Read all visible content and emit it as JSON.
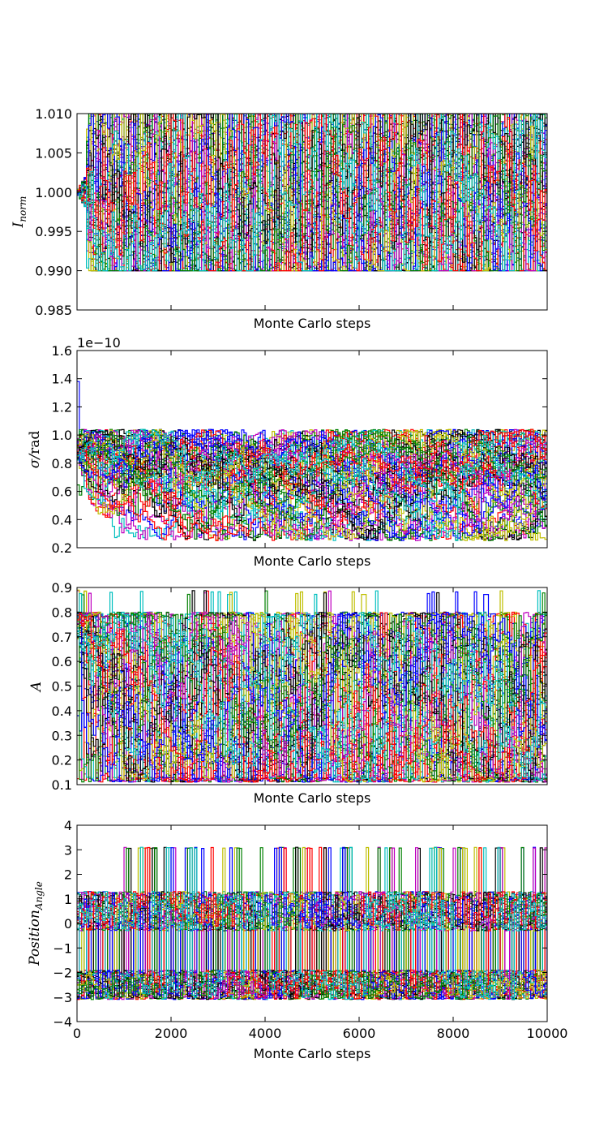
{
  "chart_data": [
    {
      "type": "line",
      "panel": "I_norm",
      "title": "",
      "xlabel": "Monte Carlo steps",
      "ylabel": {
        "base": "I",
        "sub": "norm"
      },
      "xlim": [
        0,
        10000
      ],
      "ylim": [
        0.985,
        1.01
      ],
      "yticks": [
        "0.985",
        "0.990",
        "0.995",
        "1.000",
        "1.005",
        "1.010"
      ],
      "show_xtick_labels": false,
      "offset_text": "",
      "walkers": {
        "count": 60,
        "colors": [
          "#0000ff",
          "#008000",
          "#ff0000",
          "#00bfbf",
          "#bf00bf",
          "#bfbf00",
          "#000000"
        ]
      },
      "series_envelope": {
        "start": 1.0,
        "lower": 0.99,
        "upper": 1.01
      }
    },
    {
      "type": "line",
      "panel": "sigma",
      "title": "",
      "xlabel": "Monte Carlo steps",
      "ylabel": {
        "base": "σ/",
        "upright": "rad"
      },
      "xlim": [
        0,
        10000
      ],
      "ylim": [
        0.2,
        1.6
      ],
      "yticks": [
        "0.2",
        "0.4",
        "0.6",
        "0.8",
        "1.0",
        "1.2",
        "1.4",
        "1.6"
      ],
      "show_xtick_labels": false,
      "offset_text": "1e−10",
      "walkers": {
        "count": 60,
        "colors": [
          "#0000ff",
          "#008000",
          "#ff0000",
          "#00bfbf",
          "#bf00bf",
          "#bfbf00",
          "#000000"
        ]
      },
      "series_envelope": {
        "start": 1.38,
        "lower": 0.25,
        "upper": 1.04,
        "typical_low": 0.55
      }
    },
    {
      "type": "line",
      "panel": "A",
      "title": "",
      "xlabel": "Monte Carlo steps",
      "ylabel": {
        "base": "A"
      },
      "xlim": [
        0,
        10000
      ],
      "ylim": [
        0.1,
        0.9
      ],
      "yticks": [
        "0.1",
        "0.2",
        "0.3",
        "0.4",
        "0.5",
        "0.6",
        "0.7",
        "0.8",
        "0.9"
      ],
      "show_xtick_labels": false,
      "offset_text": "",
      "walkers": {
        "count": 60,
        "colors": [
          "#0000ff",
          "#008000",
          "#ff0000",
          "#00bfbf",
          "#bf00bf",
          "#bfbf00",
          "#000000"
        ]
      },
      "series_envelope": {
        "start": 0.8,
        "lower": 0.11,
        "upper": 0.8,
        "spike_max": 0.89
      }
    },
    {
      "type": "line",
      "panel": "PA",
      "title": "",
      "xlabel": "Monte Carlo steps",
      "ylabel": {
        "base": "Position",
        "sub": "Angle"
      },
      "xlim": [
        0,
        10000
      ],
      "ylim": [
        -4,
        4
      ],
      "xticks": [
        "0",
        "2000",
        "4000",
        "6000",
        "8000",
        "10000"
      ],
      "yticks": [
        "−4",
        "−3",
        "−2",
        "−1",
        "0",
        "1",
        "2",
        "3",
        "4"
      ],
      "show_xtick_labels": true,
      "offset_text": "",
      "walkers": {
        "count": 60,
        "colors": [
          "#0000ff",
          "#008000",
          "#ff0000",
          "#00bfbf",
          "#bf00bf",
          "#bfbf00",
          "#000000"
        ]
      },
      "series_envelope": {
        "upper_band": [
          -0.3,
          1.3
        ],
        "lower_band": [
          -3.1,
          -1.9
        ],
        "spike_value": 3.1
      }
    }
  ]
}
